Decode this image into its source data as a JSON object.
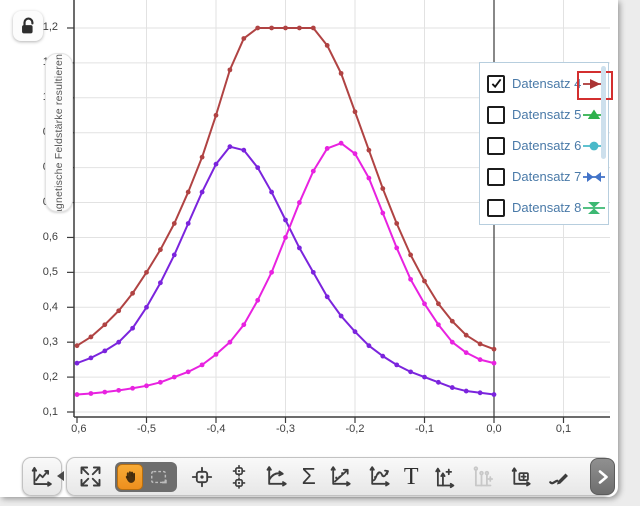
{
  "app": {
    "background": "#ececec",
    "canvas_bg": "#ffffff"
  },
  "y_axis": {
    "label": "Magnetische Feldstärke resultierend (",
    "ticks": [
      {
        "v": 0.1,
        "label": "0,1"
      },
      {
        "v": 0.2,
        "label": "0,2"
      },
      {
        "v": 0.3,
        "label": "0,3"
      },
      {
        "v": 0.4,
        "label": "0,4"
      },
      {
        "v": 0.5,
        "label": "0,5"
      },
      {
        "v": 0.6,
        "label": "0,6"
      },
      {
        "v": 0.7,
        "label": "0,7"
      },
      {
        "v": 0.8,
        "label": "0,8"
      },
      {
        "v": 0.9,
        "label": "0,9"
      },
      {
        "v": 1.0,
        "label": "1,0"
      },
      {
        "v": 1.1,
        "label": "1,1"
      },
      {
        "v": 1.2,
        "label": "1,2"
      }
    ]
  },
  "x_axis": {
    "ticks": [
      {
        "v": -0.6,
        "label": "-0,6"
      },
      {
        "v": -0.5,
        "label": "-0,5"
      },
      {
        "v": -0.4,
        "label": "-0,4"
      },
      {
        "v": -0.3,
        "label": "-0,3"
      },
      {
        "v": -0.2,
        "label": "-0,2"
      },
      {
        "v": -0.1,
        "label": "-0,1"
      },
      {
        "v": 0.0,
        "label": "0,0"
      },
      {
        "v": 0.1,
        "label": "0,1"
      }
    ]
  },
  "legend": {
    "items": [
      {
        "label": "Datensatz 4",
        "checked": true,
        "selected": true,
        "marker": "triangle-right",
        "color": "#ab3434"
      },
      {
        "label": "Datensatz 5",
        "checked": false,
        "selected": false,
        "marker": "triangle-up",
        "color": "#2fb14d"
      },
      {
        "label": "Datensatz 6",
        "checked": false,
        "selected": false,
        "marker": "circle",
        "color": "#49b9c9"
      },
      {
        "label": "Datensatz 7",
        "checked": false,
        "selected": false,
        "marker": "bowtie-h",
        "color": "#4273c8"
      },
      {
        "label": "Datensatz 8",
        "checked": false,
        "selected": false,
        "marker": "bowtie-v",
        "color": "#3cb872"
      }
    ]
  },
  "toolbar": {
    "sigma": "Σ",
    "text_tool": "T",
    "tools": [
      "graph-palette",
      "scale-to-fit",
      "pan-hand (active)",
      "marquee-select",
      "coordinates-target",
      "delta-coordinates",
      "slope-tool",
      "statistics-sigma",
      "linear-fit",
      "curve-fit",
      "text-annotation",
      "add-y-axis",
      "multi-y-axis (disabled)",
      "add-plot-area",
      "prediction-pencil",
      "more-tools-scroll"
    ]
  },
  "chart_data": {
    "type": "line",
    "title": "",
    "xlabel": "",
    "ylabel": "Magnetische Feldstärke resultierend (",
    "xlim": [
      -0.62,
      0.17
    ],
    "ylim": [
      0.07,
      1.26
    ],
    "grid": true,
    "legend_position": "right",
    "saturation_level": 1.2,
    "x": [
      -0.6,
      -0.58,
      -0.56,
      -0.54,
      -0.52,
      -0.5,
      -0.48,
      -0.46,
      -0.44,
      -0.42,
      -0.4,
      -0.38,
      -0.36,
      -0.34,
      -0.32,
      -0.3,
      -0.28,
      -0.26,
      -0.24,
      -0.22,
      -0.2,
      -0.18,
      -0.16,
      -0.14,
      -0.12,
      -0.1,
      -0.08,
      -0.06,
      -0.04,
      -0.02,
      0.0
    ],
    "series": [
      {
        "name": "Datensatz 4",
        "color": "#b04343",
        "values": [
          0.29,
          0.315,
          0.35,
          0.39,
          0.44,
          0.5,
          0.565,
          0.64,
          0.73,
          0.83,
          0.95,
          1.08,
          1.17,
          1.2,
          1.2,
          1.2,
          1.2,
          1.2,
          1.15,
          1.07,
          0.96,
          0.85,
          0.74,
          0.64,
          0.55,
          0.475,
          0.41,
          0.36,
          0.32,
          0.295,
          0.28
        ]
      },
      {
        "name": "",
        "color": "#7b24dd",
        "values": [
          0.24,
          0.255,
          0.275,
          0.3,
          0.34,
          0.4,
          0.47,
          0.55,
          0.64,
          0.73,
          0.81,
          0.86,
          0.85,
          0.8,
          0.73,
          0.65,
          0.57,
          0.5,
          0.43,
          0.375,
          0.33,
          0.29,
          0.26,
          0.235,
          0.215,
          0.2,
          0.185,
          0.17,
          0.16,
          0.155,
          0.15
        ]
      },
      {
        "name": "",
        "color": "#e822e0",
        "values": [
          0.15,
          0.153,
          0.157,
          0.162,
          0.168,
          0.175,
          0.185,
          0.2,
          0.215,
          0.235,
          0.265,
          0.3,
          0.35,
          0.42,
          0.5,
          0.6,
          0.7,
          0.79,
          0.855,
          0.87,
          0.84,
          0.77,
          0.67,
          0.57,
          0.48,
          0.41,
          0.35,
          0.3,
          0.27,
          0.25,
          0.24
        ]
      }
    ]
  }
}
